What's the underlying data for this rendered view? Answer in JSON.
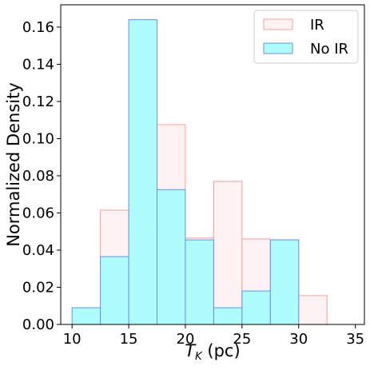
{
  "chart_data": {
    "type": "bar",
    "subtype": "overlaid-histogram",
    "xlabel_main": "T",
    "xlabel_sub": "K",
    "xlabel_unit": " (pc)",
    "ylabel": "Normalized Density",
    "xlim": [
      9,
      35.8
    ],
    "ylim": [
      0,
      0.172
    ],
    "xticks": [
      10,
      15,
      20,
      25,
      30,
      35
    ],
    "yticks": [
      0.0,
      0.02,
      0.04,
      0.06,
      0.08,
      0.1,
      0.12,
      0.14,
      0.16
    ],
    "ytick_labels": [
      "0.00",
      "0.02",
      "0.04",
      "0.06",
      "0.08",
      "0.10",
      "0.12",
      "0.14",
      "0.16"
    ],
    "bin_edges": [
      10,
      12.5,
      15,
      17.5,
      20,
      22.5,
      25,
      27.5,
      30,
      32.5,
      35
    ],
    "grid": false,
    "legend_position": "top-right",
    "series": [
      {
        "name": "IR",
        "values": [
          0,
          0.0615,
          0.046,
          0.1075,
          0.0465,
          0.077,
          0.046,
          0.0455,
          0.0155,
          0
        ],
        "fill": "#fff2f2",
        "stroke": "#f4a0a0"
      },
      {
        "name": "No IR",
        "values": [
          0.009,
          0.0365,
          0.164,
          0.0725,
          0.0455,
          0.009,
          0.018,
          0.0455,
          0,
          0
        ],
        "fill": "#aefcfc",
        "stroke": "#6f8fe6"
      }
    ]
  }
}
